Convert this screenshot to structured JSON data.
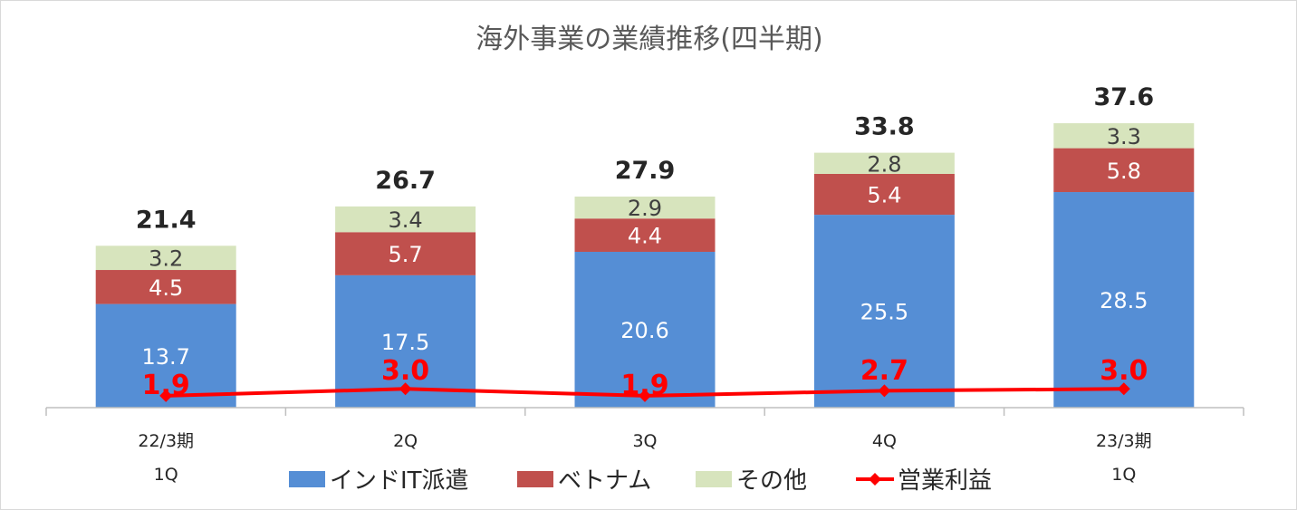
{
  "chart_data": {
    "type": "bar",
    "stacked": true,
    "title": "海外事業の業績推移(四半期)",
    "categories": [
      [
        "22/3期",
        "1Q"
      ],
      [
        "2Q"
      ],
      [
        "3Q"
      ],
      [
        "4Q"
      ],
      [
        "23/3期",
        "1Q"
      ]
    ],
    "series": [
      {
        "name": "インドIT派遣",
        "color": "#558ed5",
        "label_color": "#ffffff",
        "values": [
          13.7,
          17.5,
          20.6,
          25.5,
          28.5
        ]
      },
      {
        "name": "ベトナム",
        "color": "#c0504d",
        "label_color": "#ffffff",
        "values": [
          4.5,
          5.7,
          4.4,
          5.4,
          5.8
        ]
      },
      {
        "name": "その他",
        "color": "#d7e4bd",
        "label_color": "#404040",
        "values": [
          3.2,
          3.4,
          2.9,
          2.8,
          3.3
        ]
      }
    ],
    "totals": [
      21.4,
      26.7,
      27.9,
      33.8,
      37.6
    ],
    "line_series": {
      "name": "営業利益",
      "color": "#ff0000",
      "values": [
        1.9,
        3.0,
        1.9,
        2.7,
        3.0
      ]
    },
    "ylim": [
      0,
      40
    ],
    "line_ylim": [
      0,
      11
    ],
    "grid": false,
    "legend_position": "bottom"
  }
}
